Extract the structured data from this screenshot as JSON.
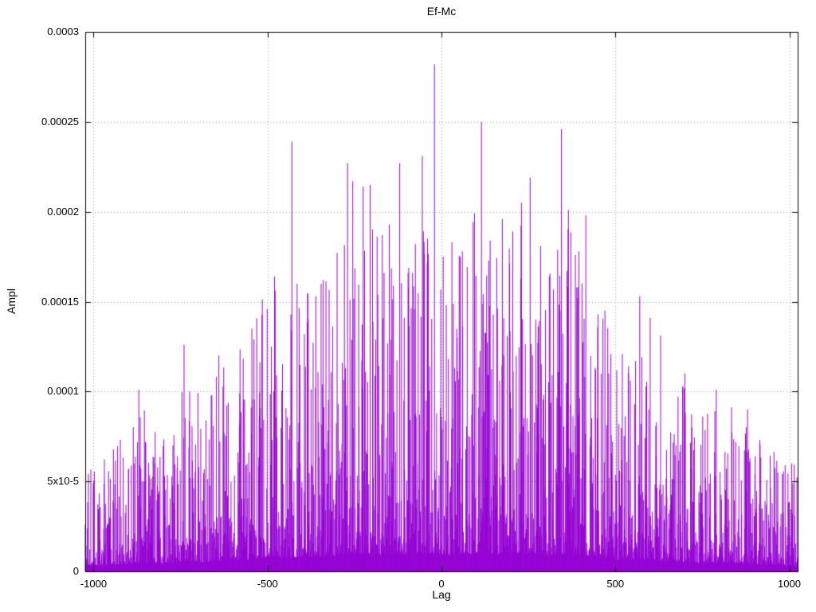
{
  "page": {
    "background": "#ffffff",
    "text_color": "#000000"
  },
  "chart_data": {
    "type": "line",
    "style": "impulses",
    "title": "Ef-Mc",
    "xlabel": "Lag",
    "ylabel": "Ampl",
    "xlim": [
      -1024,
      1024
    ],
    "ylim": [
      0,
      0.0003
    ],
    "grid": true,
    "grid_color": "#999999",
    "border_color": "#000000",
    "line_color": "#9400d3",
    "legend": "none",
    "x_ticks": [
      {
        "value": -1000,
        "label": "-1000"
      },
      {
        "value": -500,
        "label": "-500"
      },
      {
        "value": 0,
        "label": "0"
      },
      {
        "value": 500,
        "label": "500"
      },
      {
        "value": 1000,
        "label": "1000"
      }
    ],
    "y_ticks": [
      {
        "value": 0.0,
        "label": "0"
      },
      {
        "value": 5e-05,
        "label": "5x10-5"
      },
      {
        "value": 0.0001,
        "label": "0.0001"
      },
      {
        "value": 0.00015,
        "label": "0.00015"
      },
      {
        "value": 0.0002,
        "label": "0.0002"
      },
      {
        "value": 0.00025,
        "label": "0.00025"
      },
      {
        "value": 0.0003,
        "label": "0.0003"
      }
    ],
    "description": "Dense noisy cross-correlation amplitude vs lag; impulse spikes peaking near lag 0 and tapering toward the edges",
    "n_lags": 2049,
    "seed": 20,
    "noise_floor_fraction": 0.05,
    "noise_exponent": 3.2,
    "envelope": [
      [
        -1024,
        6e-05
      ],
      [
        -950,
        7e-05
      ],
      [
        -900,
        8e-05
      ],
      [
        -870,
        0.000102
      ],
      [
        -820,
        8e-05
      ],
      [
        -760,
        9e-05
      ],
      [
        -740,
        0.000126
      ],
      [
        -700,
        0.0001
      ],
      [
        -660,
        0.00011
      ],
      [
        -620,
        0.000123
      ],
      [
        -560,
        0.00013
      ],
      [
        -520,
        0.000152
      ],
      [
        -480,
        0.000165
      ],
      [
        -450,
        0.000145
      ],
      [
        -400,
        0.00016
      ],
      [
        -350,
        0.00016
      ],
      [
        -300,
        0.000175
      ],
      [
        -260,
        0.000205
      ],
      [
        -220,
        0.000195
      ],
      [
        -180,
        0.000188
      ],
      [
        -140,
        0.0002
      ],
      [
        -100,
        0.00019
      ],
      [
        -60,
        0.000195
      ],
      [
        -20,
        0.0002
      ],
      [
        0,
        0.000185
      ],
      [
        40,
        0.000185
      ],
      [
        80,
        0.000195
      ],
      [
        120,
        0.0002
      ],
      [
        160,
        0.000195
      ],
      [
        200,
        0.000195
      ],
      [
        240,
        0.0002
      ],
      [
        280,
        0.00018
      ],
      [
        320,
        0.00018
      ],
      [
        360,
        0.0002
      ],
      [
        400,
        0.000195
      ],
      [
        440,
        0.00016
      ],
      [
        480,
        0.000145
      ],
      [
        520,
        0.00012
      ],
      [
        560,
        0.00014
      ],
      [
        600,
        0.000135
      ],
      [
        640,
        0.00012
      ],
      [
        680,
        0.00011
      ],
      [
        720,
        0.0001
      ],
      [
        760,
        9e-05
      ],
      [
        800,
        0.0001
      ],
      [
        840,
        9e-05
      ],
      [
        880,
        8.5e-05
      ],
      [
        920,
        8e-05
      ],
      [
        960,
        7e-05
      ],
      [
        1024,
        6e-05
      ]
    ],
    "notable_peaks": [
      [
        -870,
        0.000101
      ],
      [
        -740,
        0.000126
      ],
      [
        -640,
        0.00012
      ],
      [
        -480,
        0.000164
      ],
      [
        -430,
        0.000239
      ],
      [
        -415,
        0.00016
      ],
      [
        -340,
        0.000162
      ],
      [
        -300,
        0.000177
      ],
      [
        -270,
        0.000227
      ],
      [
        -255,
        0.000217
      ],
      [
        -225,
        0.000214
      ],
      [
        -205,
        0.000215
      ],
      [
        -185,
        0.000186
      ],
      [
        -170,
        0.000187
      ],
      [
        -150,
        0.000193
      ],
      [
        -120,
        0.000227
      ],
      [
        -95,
        0.000158
      ],
      [
        -75,
        0.000182
      ],
      [
        -55,
        0.000231
      ],
      [
        -40,
        0.000185
      ],
      [
        -20,
        0.000282
      ],
      [
        5,
        0.000175
      ],
      [
        30,
        0.000183
      ],
      [
        60,
        0.000178
      ],
      [
        95,
        0.000199
      ],
      [
        115,
        0.00025
      ],
      [
        140,
        0.000184
      ],
      [
        175,
        0.000196
      ],
      [
        205,
        0.000189
      ],
      [
        230,
        0.000205
      ],
      [
        255,
        0.000219
      ],
      [
        285,
        0.000181
      ],
      [
        310,
        0.000164
      ],
      [
        345,
        0.000246
      ],
      [
        365,
        0.000201
      ],
      [
        395,
        0.000178
      ],
      [
        415,
        0.000198
      ],
      [
        450,
        0.000143
      ],
      [
        470,
        0.000145
      ],
      [
        520,
        0.000121
      ],
      [
        570,
        0.000153
      ],
      [
        600,
        0.000141
      ],
      [
        630,
        0.000131
      ],
      [
        700,
        0.00011
      ],
      [
        790,
        0.000101
      ],
      [
        880,
        9e-05
      ]
    ]
  }
}
